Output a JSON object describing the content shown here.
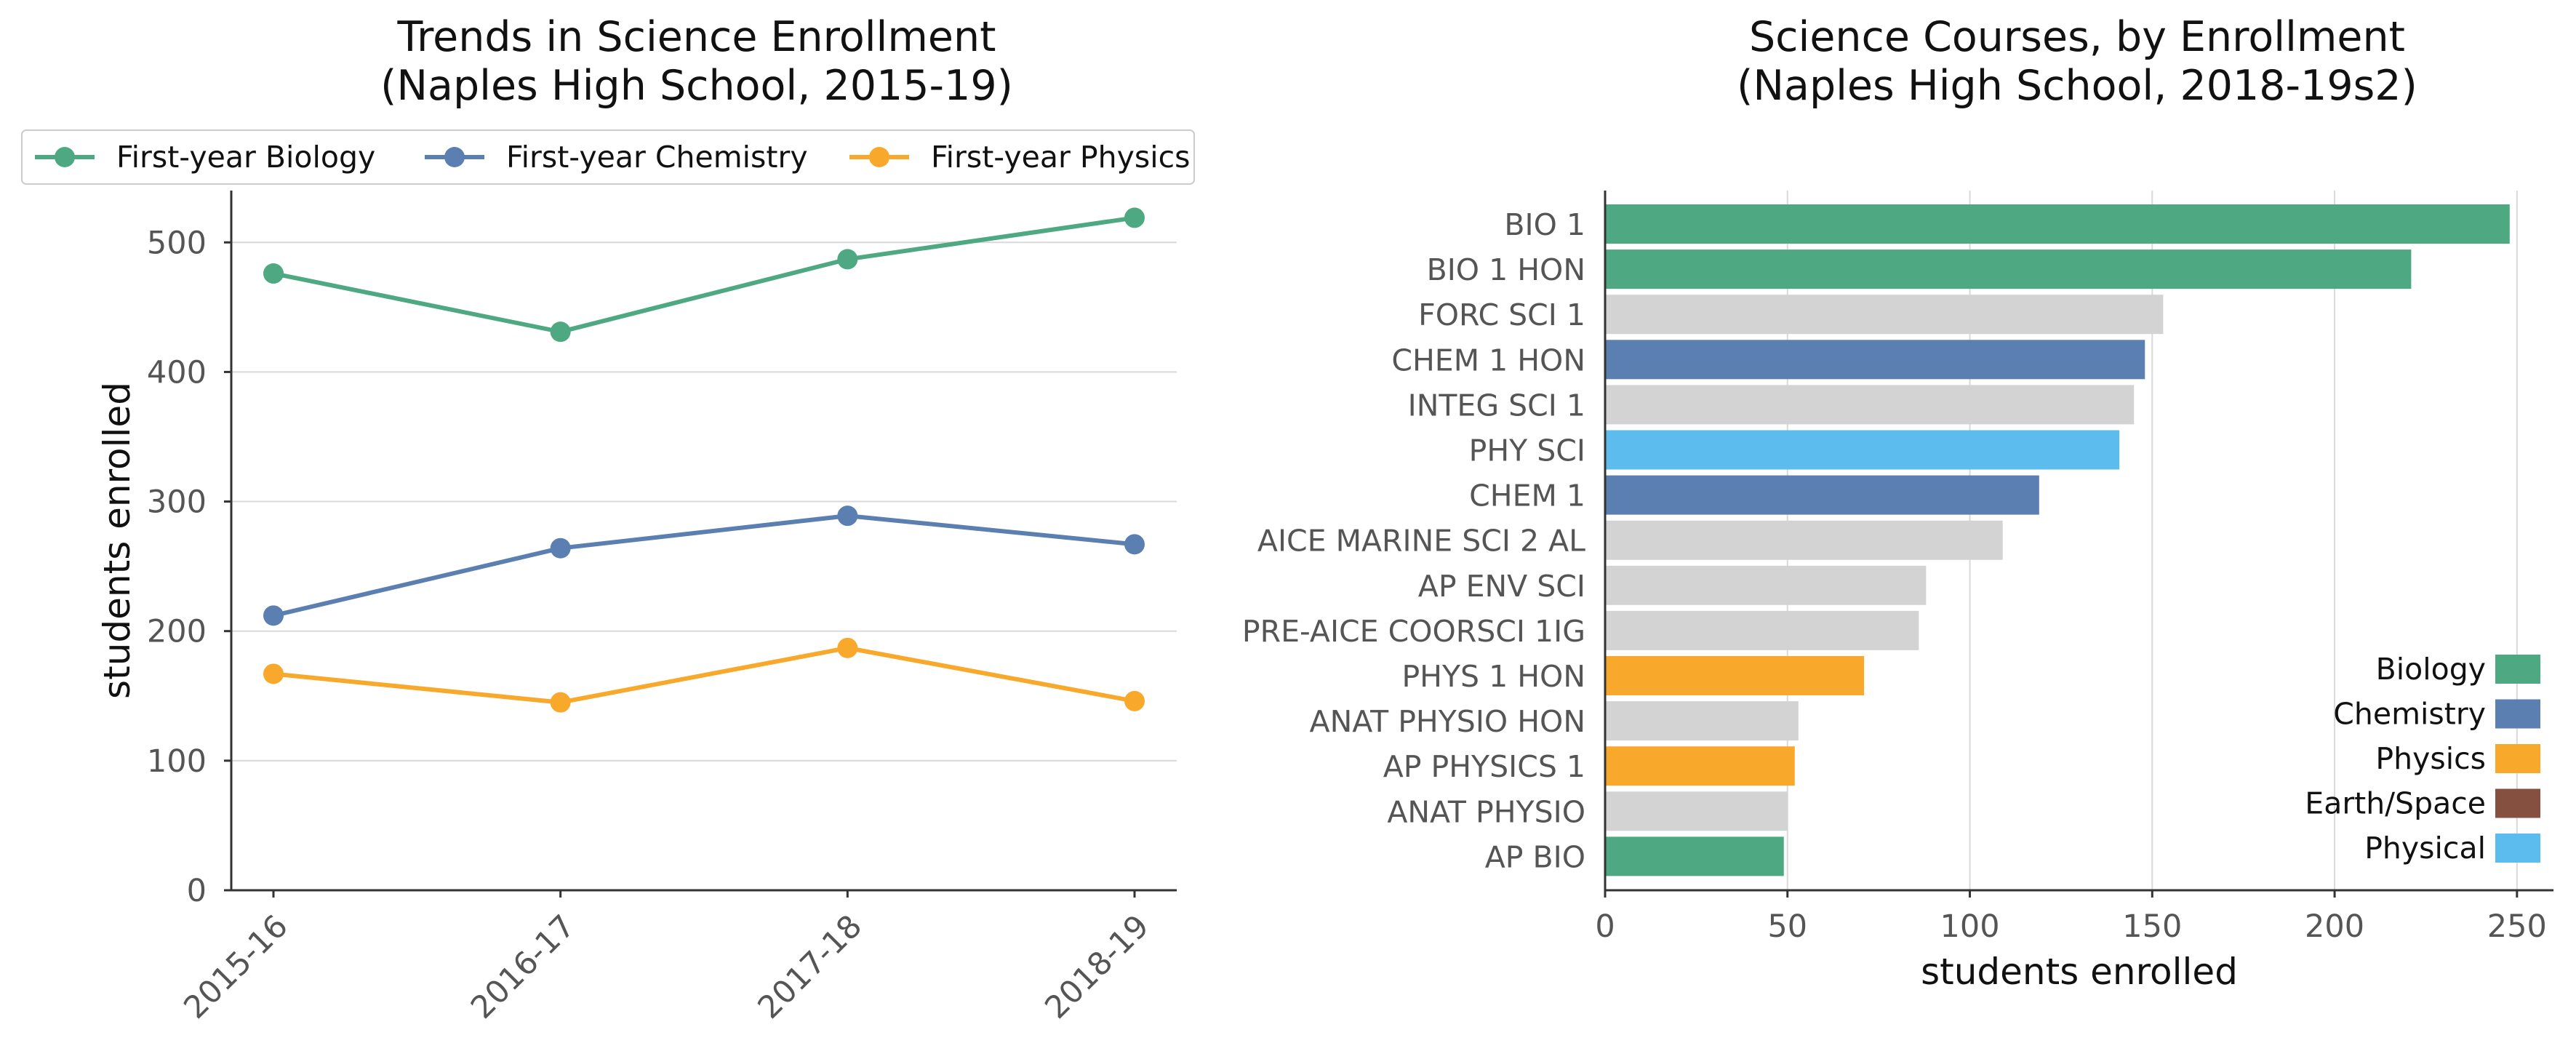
{
  "palette": {
    "Biology": "#4ea983",
    "Chemistry": "#5b7fb0",
    "Physics": "#f8a82a",
    "Earth/Space": "#85503f",
    "Physical": "#5cbced",
    "Other": "#d3d3d3"
  },
  "chart_data": [
    {
      "type": "line",
      "title_lines": [
        "Trends in Science Enrollment",
        "(Naples High School, 2015-19)"
      ],
      "xlabel": "",
      "ylabel": "students enrolled",
      "categories": [
        "2015-16",
        "2016-17",
        "2017-18",
        "2018-19"
      ],
      "series": [
        {
          "name": "First-year Biology",
          "color": "#4ea983",
          "values": [
            476,
            431,
            487,
            519
          ]
        },
        {
          "name": "First-year Chemistry",
          "color": "#5b7fb0",
          "values": [
            212,
            264,
            289,
            267
          ]
        },
        {
          "name": "First-year Physics",
          "color": "#f8a82a",
          "values": [
            167,
            145,
            187,
            146
          ]
        }
      ],
      "ylim": [
        0,
        540
      ],
      "yticks": [
        0,
        100,
        200,
        300,
        400,
        500
      ],
      "grid": "horizontal",
      "legend": "top"
    },
    {
      "type": "bar",
      "orientation": "horizontal",
      "title_lines": [
        "Science Courses, by Enrollment",
        "(Naples High School, 2018-19s2)"
      ],
      "xlabel": "students enrolled",
      "ylabel": "",
      "categories": [
        "BIO 1",
        "BIO 1 HON",
        "FORC SCI 1",
        "CHEM 1 HON",
        "INTEG SCI 1",
        "PHY SCI",
        "CHEM 1",
        "AICE MARINE SCI 2 AL",
        "AP ENV SCI",
        "PRE-AICE COORSCI 1IG",
        "PHYS 1 HON",
        "ANAT PHYSIO HON",
        "AP PHYSICS 1",
        "ANAT PHYSIO",
        "AP BIO"
      ],
      "values": [
        248,
        221,
        153,
        148,
        145,
        141,
        119,
        109,
        88,
        86,
        71,
        53,
        52,
        50,
        49
      ],
      "groups": [
        "Biology",
        "Biology",
        "Other",
        "Chemistry",
        "Other",
        "Physical",
        "Chemistry",
        "Other",
        "Other",
        "Other",
        "Physics",
        "Other",
        "Physics",
        "Other",
        "Biology"
      ],
      "xlim": [
        0,
        260
      ],
      "xticks": [
        0,
        50,
        100,
        150,
        200,
        250
      ],
      "grid": "vertical",
      "legend_entries": [
        "Biology",
        "Chemistry",
        "Physics",
        "Earth/Space",
        "Physical"
      ],
      "legend": "lower-right"
    }
  ]
}
